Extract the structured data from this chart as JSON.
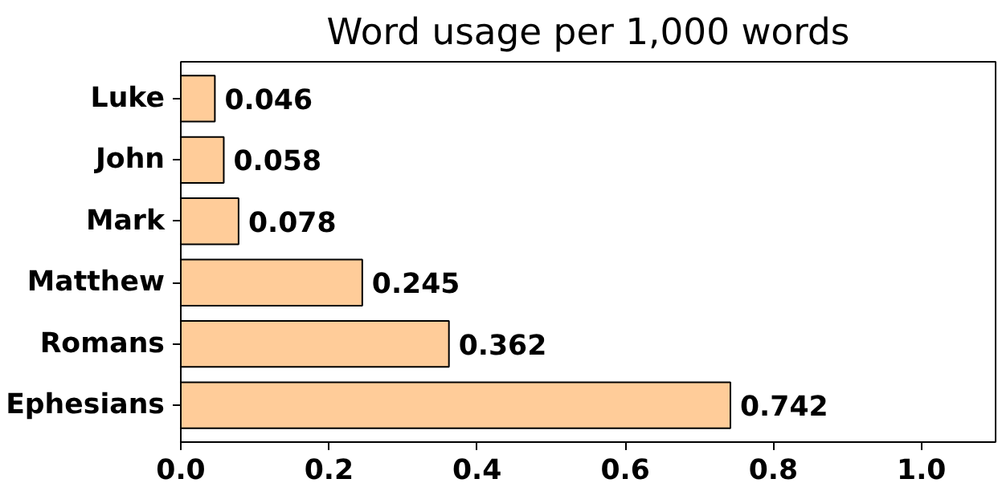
{
  "chart_data": {
    "type": "bar",
    "orientation": "horizontal",
    "title": "Word usage per 1,000 words",
    "categories": [
      "Luke",
      "John",
      "Mark",
      "Matthew",
      "Romans",
      "Ephesians"
    ],
    "values": [
      0.046,
      0.058,
      0.078,
      0.245,
      0.362,
      0.742
    ],
    "color": "#ffcc99",
    "data_labels": true,
    "grid": false,
    "xlim": [
      0,
      1.1
    ],
    "xticks": [
      {
        "value": 0,
        "label": "0.0"
      },
      0.2,
      0.4,
      0.6,
      0.8,
      {
        "value": 1,
        "label": "1.0"
      }
    ]
  }
}
